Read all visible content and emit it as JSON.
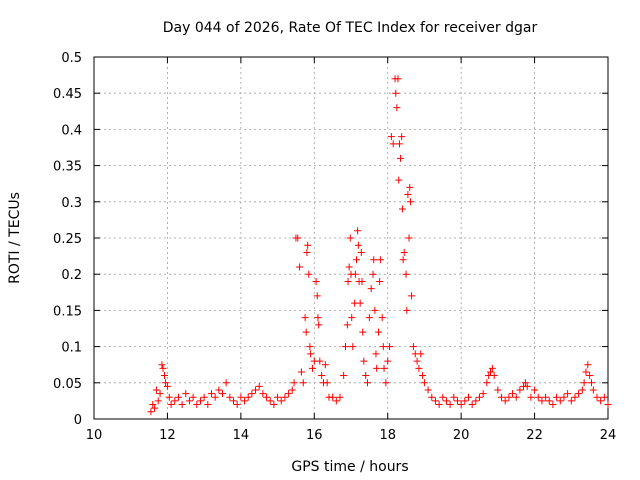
{
  "chart_data": {
    "type": "scatter",
    "title": "Day 044 of 2026, Rate Of TEC Index for receiver dgar",
    "xlabel": "GPS time / hours",
    "ylabel": "ROTI / TECUs",
    "xlim": [
      10,
      24
    ],
    "ylim": [
      0,
      0.5
    ],
    "xticks": [
      "10",
      "12",
      "14",
      "16",
      "18",
      "20",
      "22",
      "24"
    ],
    "yticks": [
      "0",
      "0.05",
      "0.1",
      "0.15",
      "0.2",
      "0.25",
      "0.3",
      "0.35",
      "0.4",
      "0.45",
      "0.5"
    ],
    "grid": true,
    "marker": "+",
    "color": "#ff0000",
    "series": [
      {
        "name": "ROTI",
        "points": [
          [
            11.55,
            0.01
          ],
          [
            11.6,
            0.02
          ],
          [
            11.65,
            0.015
          ],
          [
            11.7,
            0.04
          ],
          [
            11.75,
            0.025
          ],
          [
            11.8,
            0.035
          ],
          [
            11.85,
            0.075
          ],
          [
            11.88,
            0.07
          ],
          [
            11.92,
            0.06
          ],
          [
            11.95,
            0.05
          ],
          [
            12.0,
            0.045
          ],
          [
            12.05,
            0.03
          ],
          [
            12.1,
            0.02
          ],
          [
            12.2,
            0.025
          ],
          [
            12.3,
            0.03
          ],
          [
            12.4,
            0.02
          ],
          [
            12.5,
            0.035
          ],
          [
            12.6,
            0.025
          ],
          [
            12.7,
            0.03
          ],
          [
            12.8,
            0.02
          ],
          [
            12.9,
            0.025
          ],
          [
            13.0,
            0.03
          ],
          [
            13.1,
            0.02
          ],
          [
            13.2,
            0.035
          ],
          [
            13.3,
            0.03
          ],
          [
            13.4,
            0.04
          ],
          [
            13.5,
            0.035
          ],
          [
            13.6,
            0.05
          ],
          [
            13.7,
            0.03
          ],
          [
            13.8,
            0.025
          ],
          [
            13.9,
            0.02
          ],
          [
            14.0,
            0.03
          ],
          [
            14.1,
            0.025
          ],
          [
            14.2,
            0.03
          ],
          [
            14.3,
            0.035
          ],
          [
            14.4,
            0.04
          ],
          [
            14.5,
            0.045
          ],
          [
            14.6,
            0.035
          ],
          [
            14.7,
            0.03
          ],
          [
            14.8,
            0.025
          ],
          [
            14.9,
            0.02
          ],
          [
            15.0,
            0.03
          ],
          [
            15.1,
            0.025
          ],
          [
            15.2,
            0.03
          ],
          [
            15.3,
            0.035
          ],
          [
            15.4,
            0.04
          ],
          [
            15.45,
            0.05
          ],
          [
            15.5,
            0.25
          ],
          [
            15.55,
            0.25
          ],
          [
            15.6,
            0.21
          ],
          [
            15.65,
            0.065
          ],
          [
            15.7,
            0.05
          ],
          [
            15.75,
            0.14
          ],
          [
            15.78,
            0.12
          ],
          [
            15.8,
            0.23
          ],
          [
            15.82,
            0.24
          ],
          [
            15.85,
            0.2
          ],
          [
            15.88,
            0.1
          ],
          [
            15.9,
            0.09
          ],
          [
            15.95,
            0.07
          ],
          [
            16.0,
            0.08
          ],
          [
            16.05,
            0.19
          ],
          [
            16.08,
            0.17
          ],
          [
            16.1,
            0.14
          ],
          [
            16.12,
            0.13
          ],
          [
            16.15,
            0.08
          ],
          [
            16.2,
            0.06
          ],
          [
            16.25,
            0.05
          ],
          [
            16.3,
            0.075
          ],
          [
            16.35,
            0.05
          ],
          [
            16.4,
            0.03
          ],
          [
            16.5,
            0.03
          ],
          [
            16.6,
            0.025
          ],
          [
            16.7,
            0.03
          ],
          [
            16.8,
            0.06
          ],
          [
            16.85,
            0.1
          ],
          [
            16.9,
            0.13
          ],
          [
            16.92,
            0.19
          ],
          [
            16.95,
            0.21
          ],
          [
            16.98,
            0.25
          ],
          [
            17.0,
            0.2
          ],
          [
            17.02,
            0.14
          ],
          [
            17.05,
            0.1
          ],
          [
            17.1,
            0.16
          ],
          [
            17.12,
            0.2
          ],
          [
            17.15,
            0.22
          ],
          [
            17.18,
            0.26
          ],
          [
            17.2,
            0.24
          ],
          [
            17.22,
            0.19
          ],
          [
            17.25,
            0.16
          ],
          [
            17.28,
            0.23
          ],
          [
            17.3,
            0.19
          ],
          [
            17.32,
            0.12
          ],
          [
            17.35,
            0.08
          ],
          [
            17.4,
            0.06
          ],
          [
            17.45,
            0.05
          ],
          [
            17.5,
            0.14
          ],
          [
            17.55,
            0.18
          ],
          [
            17.6,
            0.2
          ],
          [
            17.62,
            0.22
          ],
          [
            17.65,
            0.15
          ],
          [
            17.68,
            0.09
          ],
          [
            17.7,
            0.07
          ],
          [
            17.75,
            0.12
          ],
          [
            17.78,
            0.19
          ],
          [
            17.8,
            0.22
          ],
          [
            17.85,
            0.14
          ],
          [
            17.88,
            0.1
          ],
          [
            17.9,
            0.07
          ],
          [
            17.95,
            0.05
          ],
          [
            18.0,
            0.08
          ],
          [
            18.05,
            0.1
          ],
          [
            18.1,
            0.39
          ],
          [
            18.15,
            0.38
          ],
          [
            18.2,
            0.47
          ],
          [
            18.22,
            0.45
          ],
          [
            18.25,
            0.43
          ],
          [
            18.28,
            0.47
          ],
          [
            18.3,
            0.33
          ],
          [
            18.32,
            0.38
          ],
          [
            18.35,
            0.36
          ],
          [
            18.38,
            0.39
          ],
          [
            18.4,
            0.29
          ],
          [
            18.42,
            0.22
          ],
          [
            18.45,
            0.23
          ],
          [
            18.5,
            0.2
          ],
          [
            18.52,
            0.15
          ],
          [
            18.55,
            0.31
          ],
          [
            18.58,
            0.25
          ],
          [
            18.6,
            0.32
          ],
          [
            18.62,
            0.3
          ],
          [
            18.65,
            0.17
          ],
          [
            18.7,
            0.1
          ],
          [
            18.75,
            0.09
          ],
          [
            18.8,
            0.08
          ],
          [
            18.85,
            0.07
          ],
          [
            18.9,
            0.09
          ],
          [
            18.95,
            0.06
          ],
          [
            19.0,
            0.05
          ],
          [
            19.1,
            0.04
          ],
          [
            19.2,
            0.03
          ],
          [
            19.3,
            0.025
          ],
          [
            19.4,
            0.02
          ],
          [
            19.5,
            0.03
          ],
          [
            19.6,
            0.025
          ],
          [
            19.7,
            0.02
          ],
          [
            19.8,
            0.03
          ],
          [
            19.9,
            0.025
          ],
          [
            20.0,
            0.02
          ],
          [
            20.1,
            0.025
          ],
          [
            20.2,
            0.03
          ],
          [
            20.3,
            0.02
          ],
          [
            20.4,
            0.025
          ],
          [
            20.5,
            0.03
          ],
          [
            20.6,
            0.035
          ],
          [
            20.7,
            0.05
          ],
          [
            20.75,
            0.06
          ],
          [
            20.8,
            0.065
          ],
          [
            20.85,
            0.07
          ],
          [
            20.9,
            0.06
          ],
          [
            21.0,
            0.04
          ],
          [
            21.1,
            0.03
          ],
          [
            21.2,
            0.025
          ],
          [
            21.3,
            0.03
          ],
          [
            21.4,
            0.035
          ],
          [
            21.5,
            0.03
          ],
          [
            21.6,
            0.04
          ],
          [
            21.7,
            0.045
          ],
          [
            21.75,
            0.05
          ],
          [
            21.8,
            0.045
          ],
          [
            21.9,
            0.03
          ],
          [
            22.0,
            0.04
          ],
          [
            22.1,
            0.03
          ],
          [
            22.2,
            0.025
          ],
          [
            22.3,
            0.03
          ],
          [
            22.4,
            0.025
          ],
          [
            22.5,
            0.02
          ],
          [
            22.6,
            0.03
          ],
          [
            22.7,
            0.025
          ],
          [
            22.8,
            0.03
          ],
          [
            22.9,
            0.035
          ],
          [
            23.0,
            0.025
          ],
          [
            23.1,
            0.03
          ],
          [
            23.2,
            0.035
          ],
          [
            23.3,
            0.04
          ],
          [
            23.35,
            0.05
          ],
          [
            23.4,
            0.065
          ],
          [
            23.45,
            0.075
          ],
          [
            23.5,
            0.06
          ],
          [
            23.55,
            0.05
          ],
          [
            23.6,
            0.04
          ],
          [
            23.7,
            0.03
          ],
          [
            23.8,
            0.025
          ],
          [
            23.9,
            0.03
          ],
          [
            24.0,
            0.02
          ]
        ]
      }
    ]
  }
}
